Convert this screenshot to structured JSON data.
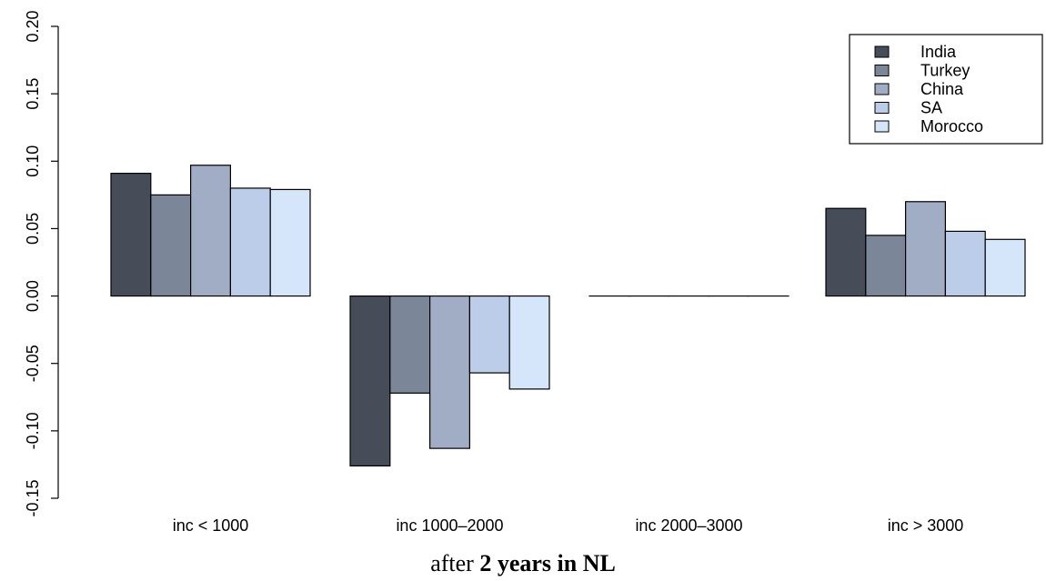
{
  "chart_data": {
    "type": "bar",
    "categories": [
      "inc < 1000",
      "inc 1000–2000",
      "inc 2000–3000",
      "inc > 3000"
    ],
    "series": [
      {
        "name": "India",
        "color": "#464c58",
        "values": [
          0.091,
          -0.126,
          0.0,
          0.065
        ]
      },
      {
        "name": "Turkey",
        "color": "#7b8699",
        "values": [
          0.075,
          -0.072,
          0.0,
          0.045
        ]
      },
      {
        "name": "China",
        "color": "#a0adc5",
        "values": [
          0.097,
          -0.113,
          0.0,
          0.07
        ]
      },
      {
        "name": "SA",
        "color": "#bccde9",
        "values": [
          0.08,
          -0.057,
          0.0,
          0.048
        ]
      },
      {
        "name": "Morocco",
        "color": "#d6e6fa",
        "values": [
          0.079,
          -0.069,
          0.0,
          0.042
        ]
      }
    ],
    "xlabel": {
      "plain": "after",
      "bold": "2 years in NL"
    },
    "ylabel": "",
    "ylim": [
      -0.15,
      0.2
    ],
    "yticks": [
      "-0.15",
      "-0.10",
      "-0.05",
      "0.00",
      "0.05",
      "0.10",
      "0.15",
      "0.20"
    ],
    "grid": false,
    "legend_position": "top-right"
  }
}
